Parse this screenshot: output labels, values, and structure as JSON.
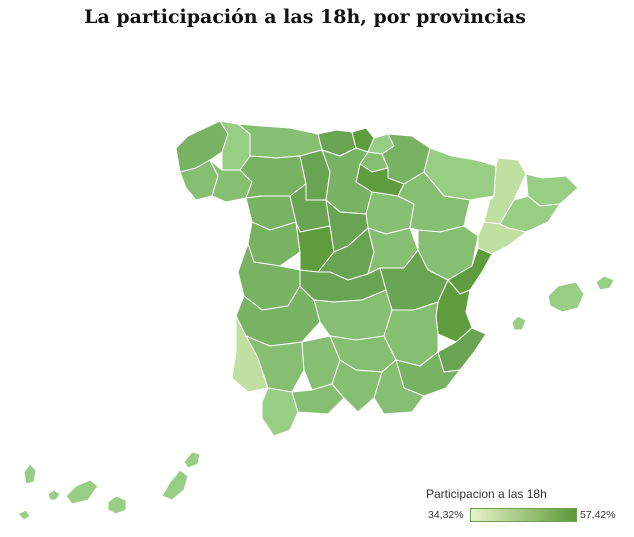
{
  "title": "La participación a las 18h, por provincias",
  "legend": {
    "title": "Participacion a las 18h",
    "min_label": "34,32%",
    "max_label": "57,42%",
    "min_color": "#e8f3c8",
    "max_color": "#5a9a37"
  },
  "palette": {
    "lightest": "#bfe0a0",
    "light": "#98cd84",
    "mid": "#86bf72",
    "medium": "#78b263",
    "dark": "#69a452",
    "darkest": "#5e9c3e"
  },
  "regions": [
    {
      "name": "Coruña",
      "tone": "medium"
    },
    {
      "name": "Lugo",
      "tone": "light"
    },
    {
      "name": "Pontevedra",
      "tone": "mid"
    },
    {
      "name": "Ourense",
      "tone": "mid"
    },
    {
      "name": "Asturias",
      "tone": "mid"
    },
    {
      "name": "Cantabria",
      "tone": "dark"
    },
    {
      "name": "Vizcaya",
      "tone": "darkest"
    },
    {
      "name": "Guipúzcoa",
      "tone": "light"
    },
    {
      "name": "Álava",
      "tone": "mid"
    },
    {
      "name": "Navarra",
      "tone": "medium"
    },
    {
      "name": "La Rioja",
      "tone": "darkest"
    },
    {
      "name": "León",
      "tone": "medium"
    },
    {
      "name": "Palencia",
      "tone": "dark"
    },
    {
      "name": "Burgos",
      "tone": "medium"
    },
    {
      "name": "Zamora",
      "tone": "medium"
    },
    {
      "name": "Valladolid",
      "tone": "dark"
    },
    {
      "name": "Soria",
      "tone": "mid"
    },
    {
      "name": "Salamanca",
      "tone": "medium"
    },
    {
      "name": "Ávila",
      "tone": "darkest"
    },
    {
      "name": "Segovia",
      "tone": "dark"
    },
    {
      "name": "Madrid",
      "tone": "dark"
    },
    {
      "name": "Guadalajara",
      "tone": "mid"
    },
    {
      "name": "Huesca",
      "tone": "light"
    },
    {
      "name": "Zaragoza",
      "tone": "mid"
    },
    {
      "name": "Teruel",
      "tone": "mid"
    },
    {
      "name": "Lleida",
      "tone": "lightest"
    },
    {
      "name": "Girona",
      "tone": "light"
    },
    {
      "name": "Barcelona",
      "tone": "light"
    },
    {
      "name": "Tarragona",
      "tone": "lightest"
    },
    {
      "name": "Cáceres",
      "tone": "medium"
    },
    {
      "name": "Badajoz",
      "tone": "medium"
    },
    {
      "name": "Toledo",
      "tone": "dark"
    },
    {
      "name": "Ciudad Real",
      "tone": "mid"
    },
    {
      "name": "Cuenca",
      "tone": "dark"
    },
    {
      "name": "Castellón",
      "tone": "darkest"
    },
    {
      "name": "Valencia",
      "tone": "darkest"
    },
    {
      "name": "Alicante",
      "tone": "dark"
    },
    {
      "name": "Albacete",
      "tone": "mid"
    },
    {
      "name": "Murcia",
      "tone": "medium"
    },
    {
      "name": "Huelva",
      "tone": "lightest"
    },
    {
      "name": "Sevilla",
      "tone": "mid"
    },
    {
      "name": "Córdoba",
      "tone": "mid"
    },
    {
      "name": "Jaén",
      "tone": "mid"
    },
    {
      "name": "Cádiz",
      "tone": "light"
    },
    {
      "name": "Málaga",
      "tone": "mid"
    },
    {
      "name": "Granada",
      "tone": "mid"
    },
    {
      "name": "Almería",
      "tone": "mid"
    },
    {
      "name": "Baleares",
      "tone": "light"
    },
    {
      "name": "Santa Cruz de Tenerife",
      "tone": "light"
    },
    {
      "name": "Las Palmas",
      "tone": "light"
    }
  ]
}
